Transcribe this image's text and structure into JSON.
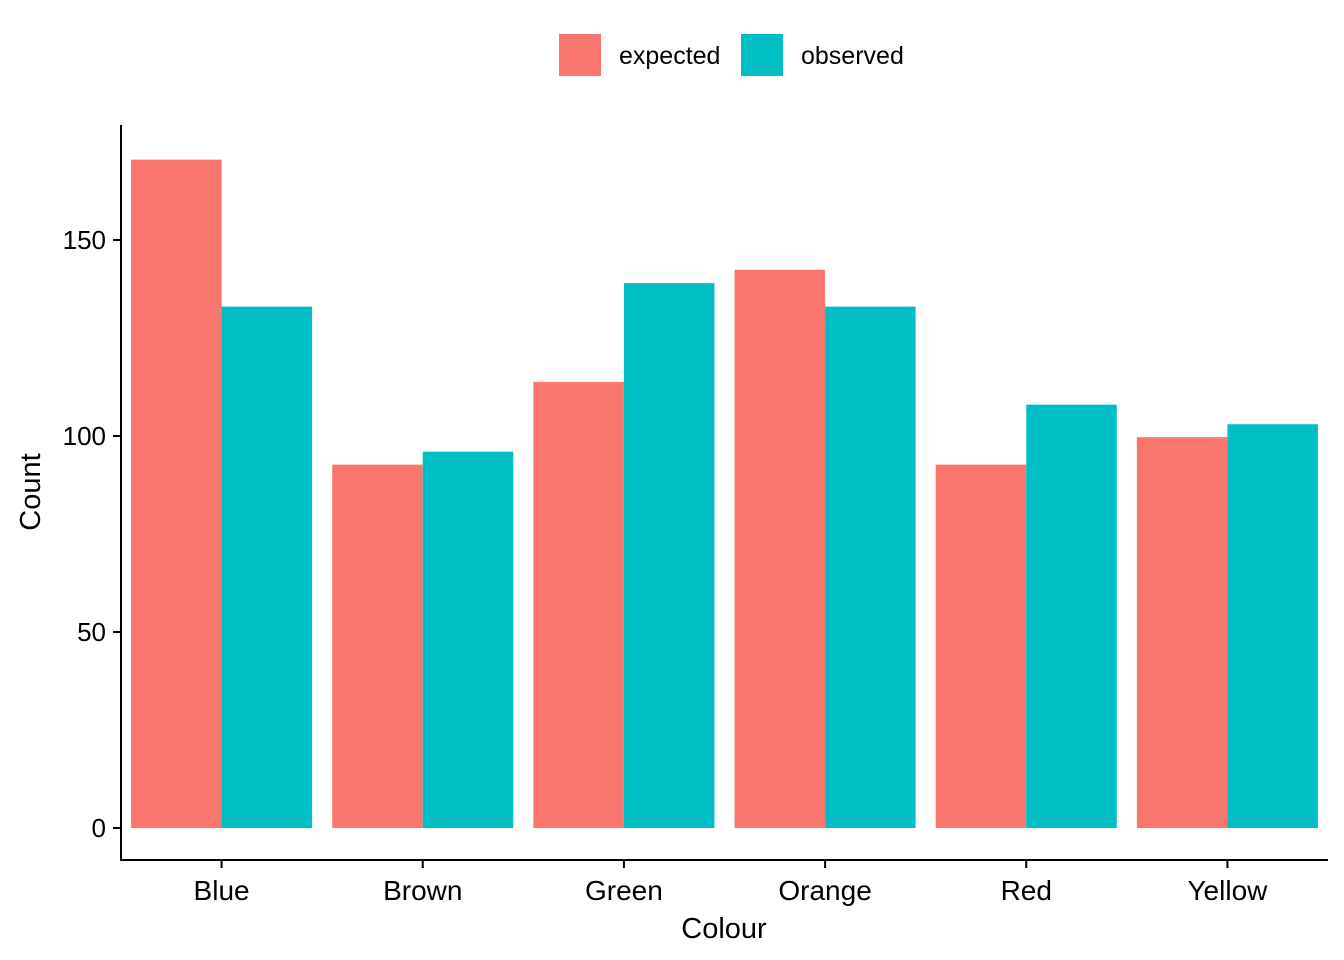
{
  "chart_data": {
    "type": "bar",
    "categories": [
      "Blue",
      "Brown",
      "Green",
      "Orange",
      "Red",
      "Yellow"
    ],
    "series": [
      {
        "name": "expected",
        "color": "#F8766D",
        "values": [
          170.5,
          92.7,
          113.8,
          142.4,
          92.7,
          99.7
        ]
      },
      {
        "name": "observed",
        "color": "#00BFC4",
        "values": [
          133,
          96,
          139,
          133,
          108,
          103
        ]
      }
    ],
    "xlabel": "Colour",
    "ylabel": "Count",
    "ylim": [
      0,
      175
    ],
    "yticks": [
      0,
      50,
      100,
      150
    ],
    "grid": false,
    "legend_position": "top"
  }
}
